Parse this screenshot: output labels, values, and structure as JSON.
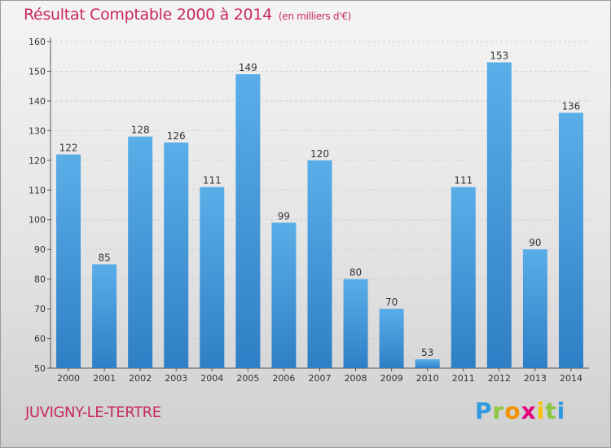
{
  "title": "Résultat Comptable 2000 à 2014",
  "title_unit": "(en milliers d'€)",
  "commune": "JUVIGNY-LE-TERTRE",
  "logo": {
    "text": "Proxiti",
    "letters": [
      "P",
      "r",
      "o",
      "x",
      "i",
      "t",
      "i"
    ],
    "colors": [
      "#2e9be0",
      "#8cc63f",
      "#f39200",
      "#e6007e",
      "#f7c600",
      "#8cc63f",
      "#2e9be0"
    ]
  },
  "colors": {
    "bar": "#4a9fe0",
    "accent": "#c8285f"
  },
  "chart_data": {
    "type": "bar",
    "title": "Résultat Comptable 2000 à 2014",
    "subtitle": "(en milliers d'€)",
    "categories": [
      "2000",
      "2001",
      "2002",
      "2003",
      "2004",
      "2005",
      "2006",
      "2007",
      "2008",
      "2009",
      "2010",
      "2011",
      "2012",
      "2013",
      "2014"
    ],
    "values": [
      122,
      85,
      128,
      126,
      111,
      149,
      99,
      120,
      80,
      70,
      53,
      111,
      153,
      90,
      136
    ],
    "yticks": [
      50,
      60,
      70,
      80,
      90,
      100,
      110,
      120,
      130,
      140,
      150,
      160
    ],
    "ylim": [
      50,
      160
    ],
    "grid": true
  }
}
